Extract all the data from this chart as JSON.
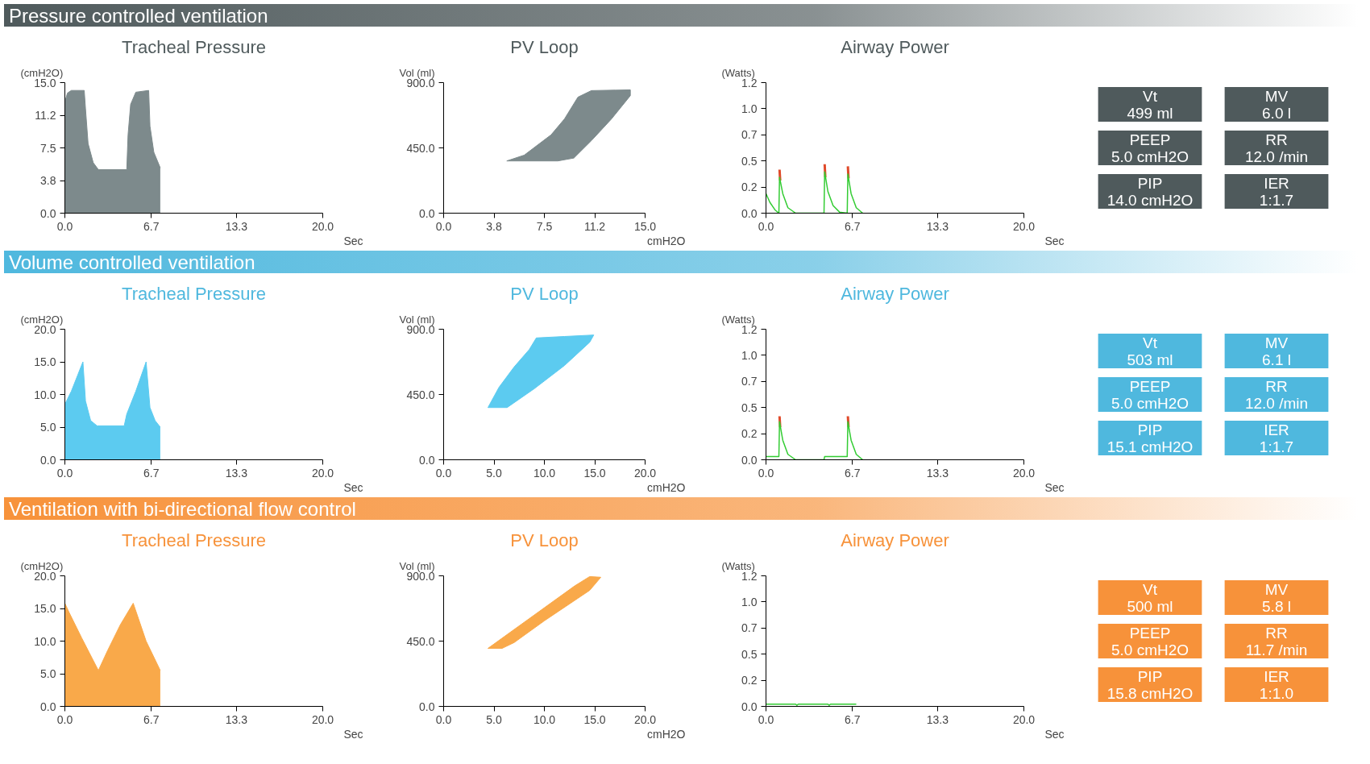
{
  "chart_data": [
    {
      "type": "area",
      "title": "Tracheal Pressure",
      "ylabel": "(cmH2O)",
      "xlabel": "Sec",
      "xlim": [
        0,
        20
      ],
      "ylim": [
        0,
        15
      ],
      "xticks": [
        {
          "value": 0,
          "label": "0.0"
        },
        {
          "value": 6.7,
          "label": "6.7"
        },
        {
          "value": 13.3,
          "label": "13.3"
        },
        {
          "value": 20,
          "label": "20.0"
        }
      ],
      "yticks": [
        {
          "value": 0,
          "label": "0.0"
        },
        {
          "value": 3.75,
          "label": "3.8"
        },
        {
          "value": 7.5,
          "label": "7.5"
        },
        {
          "value": 11.25,
          "label": "11.2"
        },
        {
          "value": 15,
          "label": "15.0"
        }
      ],
      "series": [
        {
          "color": "#7d8a8c",
          "x": [
            0,
            0.2,
            0.5,
            1.5,
            1.6,
            1.8,
            2.2,
            2.6,
            4.8,
            4.9,
            5.1,
            5.5,
            6.5,
            6.6,
            6.9,
            7.4
          ],
          "values": [
            12.8,
            13.8,
            14.1,
            14.1,
            12,
            8,
            5.8,
            5,
            5,
            9,
            12.5,
            13.9,
            14.1,
            10,
            7,
            5.2
          ]
        }
      ]
    },
    {
      "type": "area",
      "title": "PV Loop",
      "ylabel": "Vol (ml)",
      "xlabel": "cmH2O",
      "xlim": [
        0,
        15
      ],
      "ylim": [
        0,
        900
      ],
      "xticks": [
        {
          "value": 0,
          "label": "0.0"
        },
        {
          "value": 3.75,
          "label": "3.8"
        },
        {
          "value": 7.5,
          "label": "7.5"
        },
        {
          "value": 11.25,
          "label": "11.2"
        },
        {
          "value": 15,
          "label": "15.0"
        }
      ],
      "yticks": [
        {
          "value": 0,
          "label": "0.0"
        },
        {
          "value": 450,
          "label": "450.0"
        },
        {
          "value": 900,
          "label": "900.0"
        }
      ],
      "series": [
        {
          "color": "#7d8a8c",
          "x": [
            4.7,
            6,
            8,
            9,
            10,
            11,
            13.9,
            13.9,
            12.5,
            11,
            9.7,
            8.5,
            4.7
          ],
          "values": [
            360,
            400,
            540,
            650,
            800,
            845,
            850,
            810,
            650,
            500,
            380,
            360,
            360
          ]
        }
      ]
    },
    {
      "type": "line",
      "title": "Airway Power",
      "ylabel": "(Watts)",
      "xlabel": "Sec",
      "xlim": [
        0,
        20
      ],
      "ylim": [
        0,
        1.2
      ],
      "xticks": [
        {
          "value": 0,
          "label": "0.0"
        },
        {
          "value": 6.7,
          "label": "6.7"
        },
        {
          "value": 13.3,
          "label": "13.3"
        },
        {
          "value": 20,
          "label": "20.0"
        }
      ],
      "yticks": [
        {
          "value": 0,
          "label": "0.0"
        },
        {
          "value": 0.24,
          "label": "0.2"
        },
        {
          "value": 0.48,
          "label": "0.5"
        },
        {
          "value": 0.72,
          "label": "0.7"
        },
        {
          "value": 0.96,
          "label": "1.0"
        },
        {
          "value": 1.2,
          "label": "1.2"
        }
      ],
      "series": [
        {
          "color": "#e04a2a",
          "x": [
            1.05,
            1.1,
            3,
            4.55,
            4.6,
            5.5,
            6.35,
            6.4
          ],
          "values": [
            0.4,
            0.3,
            null,
            0.45,
            0.33,
            null,
            0.43,
            0.32
          ]
        },
        {
          "color": "#33cc33",
          "x": [
            0,
            0.3,
            0.7,
            1.0,
            1.05,
            1.3,
            1.7,
            2.3,
            4.5,
            4.55,
            4.8,
            5.2,
            5.7,
            6.3,
            6.35,
            6.6,
            7.0,
            7.5
          ],
          "values": [
            0.18,
            0.1,
            0.03,
            0,
            0.33,
            0.18,
            0.05,
            0,
            0,
            0.38,
            0.2,
            0.07,
            0.01,
            0,
            0.36,
            0.18,
            0.05,
            0
          ]
        }
      ]
    },
    {
      "type": "other",
      "title": "Pressure controlled ventilation",
      "color": "#4f5a5c",
      "annotations": [
        "Vt",
        "499 ml",
        "MV",
        "6.0 l",
        "PEEP",
        "5.0 cmH2O",
        "RR",
        "12.0 /min",
        "PIP",
        "14.0 cmH2O",
        "IER",
        "1:1.7"
      ]
    },
    {
      "type": "area",
      "title": "Tracheal Pressure",
      "ylabel": "(cmH2O)",
      "xlabel": "Sec",
      "xlim": [
        0,
        20
      ],
      "ylim": [
        0,
        20
      ],
      "xticks": [
        {
          "value": 0,
          "label": "0.0"
        },
        {
          "value": 6.7,
          "label": "6.7"
        },
        {
          "value": 13.3,
          "label": "13.3"
        },
        {
          "value": 20,
          "label": "20.0"
        }
      ],
      "yticks": [
        {
          "value": 0,
          "label": "0.0"
        },
        {
          "value": 5,
          "label": "5.0"
        },
        {
          "value": 10,
          "label": "10.0"
        },
        {
          "value": 15,
          "label": "15.0"
        },
        {
          "value": 20,
          "label": "20.0"
        }
      ],
      "series": [
        {
          "color": "#5ccbf0",
          "x": [
            0,
            0.5,
            1.0,
            1.4,
            1.6,
            2.0,
            2.5,
            4.6,
            4.8,
            5.5,
            6.3,
            6.6,
            7.0,
            7.4
          ],
          "values": [
            8.5,
            10.5,
            13,
            15,
            9,
            6,
            5.2,
            5.2,
            7,
            10.5,
            15,
            8,
            6,
            5
          ]
        }
      ]
    },
    {
      "type": "area",
      "title": "PV Loop",
      "ylabel": "Vol (ml)",
      "xlabel": "cmH2O",
      "xlim": [
        0,
        20
      ],
      "ylim": [
        0,
        900
      ],
      "xticks": [
        {
          "value": 0,
          "label": "0.0"
        },
        {
          "value": 5,
          "label": "5.0"
        },
        {
          "value": 10,
          "label": "10.0"
        },
        {
          "value": 15,
          "label": "15.0"
        },
        {
          "value": 20,
          "label": "20.0"
        }
      ],
      "yticks": [
        {
          "value": 0,
          "label": "0.0"
        },
        {
          "value": 450,
          "label": "450.0"
        },
        {
          "value": 900,
          "label": "900.0"
        }
      ],
      "series": [
        {
          "color": "#5ccbf0",
          "x": [
            4.4,
            5.5,
            7,
            8.5,
            9.2,
            12,
            14.9,
            14.5,
            12,
            9,
            6.3,
            4.4
          ],
          "values": [
            360,
            500,
            640,
            760,
            840,
            850,
            860,
            810,
            650,
            490,
            360,
            360
          ]
        }
      ]
    },
    {
      "type": "line",
      "title": "Airway Power",
      "ylabel": "(Watts)",
      "xlabel": "Sec",
      "xlim": [
        0,
        20
      ],
      "ylim": [
        0,
        1.2
      ],
      "xticks": [
        {
          "value": 0,
          "label": "0.0"
        },
        {
          "value": 6.7,
          "label": "6.7"
        },
        {
          "value": 13.3,
          "label": "13.3"
        },
        {
          "value": 20,
          "label": "20.0"
        }
      ],
      "yticks": [
        {
          "value": 0,
          "label": "0.0"
        },
        {
          "value": 0.24,
          "label": "0.2"
        },
        {
          "value": 0.48,
          "label": "0.5"
        },
        {
          "value": 0.72,
          "label": "0.7"
        },
        {
          "value": 0.96,
          "label": "1.0"
        },
        {
          "value": 1.2,
          "label": "1.2"
        }
      ],
      "series": [
        {
          "color": "#e04a2a",
          "x": [
            1.05,
            1.1,
            3,
            6.35,
            6.4
          ],
          "values": [
            0.4,
            0.3,
            null,
            0.4,
            0.3
          ]
        },
        {
          "color": "#33cc33",
          "x": [
            0,
            1.0,
            1.05,
            1.3,
            1.7,
            2.3,
            4.5,
            4.55,
            6.3,
            6.35,
            6.6,
            7.0,
            7.5
          ],
          "values": [
            0.03,
            0.03,
            0.35,
            0.18,
            0.05,
            0,
            0,
            0.03,
            0.03,
            0.35,
            0.18,
            0.05,
            0
          ]
        }
      ]
    },
    {
      "type": "other",
      "title": "Volume controlled ventilation",
      "color": "#4fb8de",
      "annotations": [
        "Vt",
        "503 ml",
        "MV",
        "6.1 l",
        "PEEP",
        "5.0 cmH2O",
        "RR",
        "12.0 /min",
        "PIP",
        "15.1 cmH2O",
        "IER",
        "1:1.7"
      ]
    },
    {
      "type": "area",
      "title": "Tracheal Pressure",
      "ylabel": "(cmH2O)",
      "xlabel": "Sec",
      "xlim": [
        0,
        20
      ],
      "ylim": [
        0,
        20
      ],
      "xticks": [
        {
          "value": 0,
          "label": "0.0"
        },
        {
          "value": 6.7,
          "label": "6.7"
        },
        {
          "value": 13.3,
          "label": "13.3"
        },
        {
          "value": 20,
          "label": "20.0"
        }
      ],
      "yticks": [
        {
          "value": 0,
          "label": "0.0"
        },
        {
          "value": 5,
          "label": "5.0"
        },
        {
          "value": 10,
          "label": "10.0"
        },
        {
          "value": 15,
          "label": "15.0"
        },
        {
          "value": 20,
          "label": "20.0"
        }
      ],
      "series": [
        {
          "color": "#f9a94a",
          "x": [
            0,
            0.3,
            1.3,
            2.6,
            3.3,
            4.3,
            5.3,
            6.3,
            7.4
          ],
          "values": [
            15.8,
            14.5,
            10.5,
            5.5,
            8.5,
            12.5,
            15.8,
            10,
            5.5
          ]
        }
      ]
    },
    {
      "type": "area",
      "title": "PV Loop",
      "ylabel": "Vol (ml)",
      "xlabel": "cmH2O",
      "xlim": [
        0,
        20
      ],
      "ylim": [
        0,
        900
      ],
      "xticks": [
        {
          "value": 0,
          "label": "0.0"
        },
        {
          "value": 5,
          "label": "5.0"
        },
        {
          "value": 10,
          "label": "10.0"
        },
        {
          "value": 15,
          "label": "15.0"
        },
        {
          "value": 20,
          "label": "20.0"
        }
      ],
      "yticks": [
        {
          "value": 0,
          "label": "0.0"
        },
        {
          "value": 450,
          "label": "450.0"
        },
        {
          "value": 900,
          "label": "900.0"
        }
      ],
      "series": [
        {
          "color": "#f9a94a",
          "x": [
            4.4,
            6,
            10,
            13,
            14.5,
            15.6,
            14.5,
            10,
            7,
            5.8,
            4.4
          ],
          "values": [
            400,
            480,
            680,
            830,
            895,
            890,
            800,
            590,
            440,
            400,
            400
          ]
        }
      ]
    },
    {
      "type": "line",
      "title": "Airway Power",
      "ylabel": "(Watts)",
      "xlabel": "Sec",
      "xlim": [
        0,
        20
      ],
      "ylim": [
        0,
        1.2
      ],
      "xticks": [
        {
          "value": 0,
          "label": "0.0"
        },
        {
          "value": 6.7,
          "label": "6.7"
        },
        {
          "value": 13.3,
          "label": "13.3"
        },
        {
          "value": 20,
          "label": "20.0"
        }
      ],
      "yticks": [
        {
          "value": 0,
          "label": "0.0"
        },
        {
          "value": 0.24,
          "label": "0.2"
        },
        {
          "value": 0.48,
          "label": "0.5"
        },
        {
          "value": 0.72,
          "label": "0.7"
        },
        {
          "value": 0.96,
          "label": "1.0"
        },
        {
          "value": 1.2,
          "label": "1.2"
        }
      ],
      "series": [
        {
          "color": "#33cc33",
          "x": [
            0,
            2.3,
            2.4,
            2.5,
            4.8,
            4.9,
            5.0,
            7.0
          ],
          "values": [
            0.02,
            0.02,
            0.01,
            0.02,
            0.02,
            0.01,
            0.02,
            0.02
          ]
        }
      ]
    },
    {
      "type": "other",
      "title": "Ventilation with bi-directional flow control",
      "color": "#f7923a",
      "annotations": [
        "Vt",
        "500 ml",
        "MV",
        "5.8 l",
        "PEEP",
        "5.0 cmH2O",
        "RR",
        "11.7 /min",
        "PIP",
        "15.8 cmH2O",
        "IER",
        "1:1.0"
      ]
    }
  ]
}
